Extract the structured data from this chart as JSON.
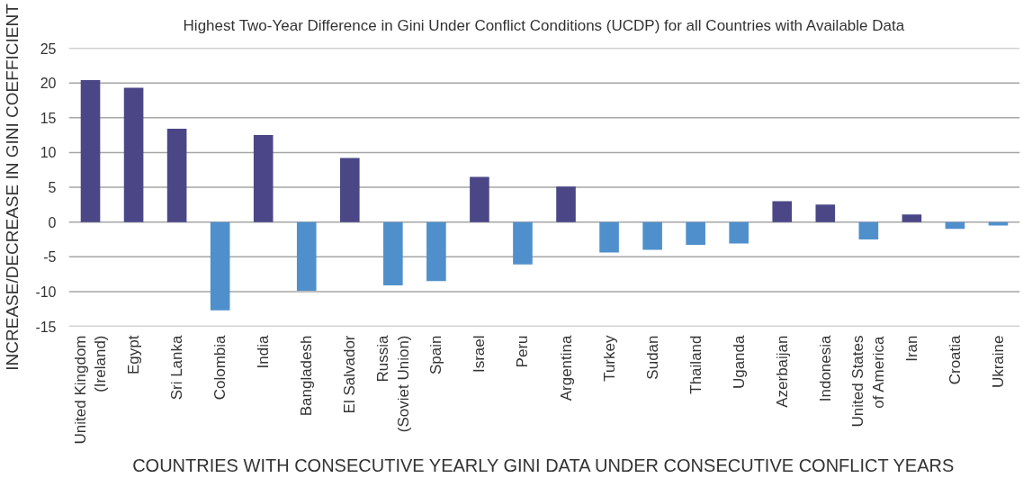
{
  "chart_data": {
    "type": "bar",
    "title": "Highest Two-Year Difference in Gini Under Conflict Conditions (UCDP) for all Countries with Available Data",
    "xlabel": "COUNTRIES WITH CONSECUTIVE YEARLY GINI DATA UNDER CONSECUTIVE CONFLICT YEARS",
    "ylabel": "INCREASE/DECREASE IN GINI COEFFICIENT",
    "categories": [
      "United Kingdom\n(Ireland)",
      "Egypt",
      "Sri Lanka",
      "Colombia",
      "India",
      "Bangladesh",
      "El Salvador",
      "Russia\n(Soviet Union)",
      "Spain",
      "Israel",
      "Peru",
      "Argentina",
      "Turkey",
      "Sudan",
      "Thailand",
      "Uganda",
      "Azerbaijan",
      "Indonesia",
      "United States\nof America",
      "Iran",
      "Croatia",
      "Ukraine"
    ],
    "values": [
      20.4,
      19.3,
      13.4,
      -12.7,
      12.5,
      -9.9,
      9.2,
      -9.1,
      -8.5,
      6.5,
      -6.1,
      5.1,
      -4.4,
      -4.0,
      -3.3,
      -3.1,
      3.0,
      2.5,
      -2.5,
      1.1,
      -1.0,
      -0.5
    ],
    "colors": [
      "#4b4787",
      "#4b4787",
      "#4b4787",
      "#4f90cc",
      "#4b4787",
      "#4f90cc",
      "#4b4787",
      "#4f90cc",
      "#4f90cc",
      "#4b4787",
      "#4f90cc",
      "#4b4787",
      "#4f90cc",
      "#4f90cc",
      "#4f90cc",
      "#4f90cc",
      "#4b4787",
      "#4b4787",
      "#4f90cc",
      "#4b4787",
      "#4f90cc",
      "#4f90cc"
    ],
    "ylim": [
      -15,
      25
    ],
    "yticks": [
      -15,
      -10,
      -5,
      0,
      5,
      10,
      15,
      20,
      25
    ],
    "grid": "y"
  }
}
